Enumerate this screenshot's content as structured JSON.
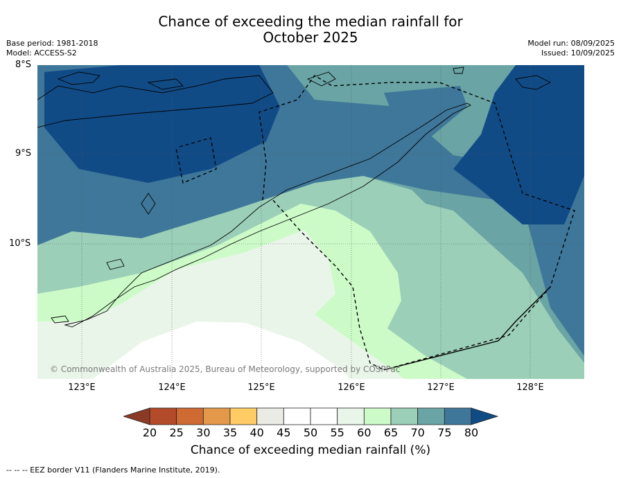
{
  "title_line1": "Chance of exceeding the median rainfall for",
  "title_line2": "October 2025",
  "base_period": "Base period: 1981-2018",
  "model": "Model: ACCESS-S2",
  "model_run": "Model run: 08/09/2025",
  "issued": "Issued: 10/09/2025",
  "lat_labels": [
    "8°S",
    "9°S",
    "10°S"
  ],
  "lon_labels": [
    "123°E",
    "124°E",
    "125°E",
    "126°E",
    "127°E",
    "128°E"
  ],
  "copyright": "© Commonwealth of Australia 2025, Bureau of Meteorology, supported by COSPPac",
  "colorbar": {
    "label": "Chance of exceeding median rainfall (%)",
    "ticks": [
      "20",
      "25",
      "30",
      "35",
      "40",
      "45",
      "50",
      "55",
      "60",
      "65",
      "70",
      "75",
      "80"
    ],
    "colors": [
      "#b34a2a",
      "#cf6a33",
      "#e4994a",
      "#fecb65",
      "#ebebe6",
      "#ffffff",
      "#ffffff",
      "#eaf5e9",
      "#ccfbc8",
      "#9bcfb8",
      "#6aa4a4",
      "#3e7799"
    ],
    "under_color": "#8a3a25",
    "over_color": "#114b86"
  },
  "footnote": "--  --  -- EEZ border V11 (Flanders Marine Institute, 2019)."
}
